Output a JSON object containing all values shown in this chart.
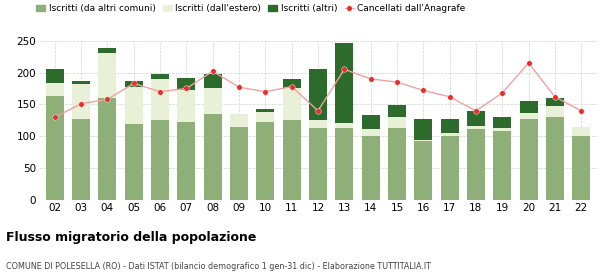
{
  "years": [
    "02",
    "03",
    "04",
    "05",
    "06",
    "07",
    "08",
    "09",
    "10",
    "11",
    "12",
    "13",
    "14",
    "15",
    "16",
    "17",
    "18",
    "19",
    "20",
    "21",
    "22"
  ],
  "iscritti_altri_comuni": [
    163,
    127,
    160,
    120,
    125,
    122,
    135,
    115,
    123,
    125,
    113,
    113,
    100,
    113,
    93,
    100,
    112,
    108,
    127,
    130,
    100
  ],
  "iscritti_estero": [
    20,
    55,
    70,
    57,
    65,
    50,
    40,
    20,
    15,
    50,
    12,
    8,
    12,
    18,
    2,
    5,
    5,
    5,
    10,
    18,
    14
  ],
  "iscritti_altri": [
    22,
    5,
    8,
    10,
    8,
    20,
    22,
    0,
    5,
    15,
    80,
    125,
    22,
    18,
    32,
    22,
    22,
    18,
    18,
    12,
    0
  ],
  "cancellati": [
    130,
    151,
    158,
    183,
    170,
    175,
    202,
    177,
    170,
    178,
    140,
    205,
    190,
    185,
    172,
    162,
    140,
    168,
    215,
    162,
    140
  ],
  "color_altri_comuni": "#8faf78",
  "color_estero": "#e8f0d8",
  "color_altri": "#2d6b2d",
  "color_cancellati": "#e8302a",
  "color_cancellati_line": "#f0a0a0",
  "title": "Flusso migratorio della popolazione",
  "subtitle": "COMUNE DI POLESELLA (RO) - Dati ISTAT (bilancio demografico 1 gen-31 dic) - Elaborazione TUTTITALIA.IT",
  "legend_labels": [
    "Iscritti (da altri comuni)",
    "Iscritti (dall'estero)",
    "Iscritti (altri)",
    "Cancellati dall'Anagrafe"
  ],
  "ylim": [
    0,
    250
  ],
  "yticks": [
    0,
    50,
    100,
    150,
    200,
    250
  ]
}
